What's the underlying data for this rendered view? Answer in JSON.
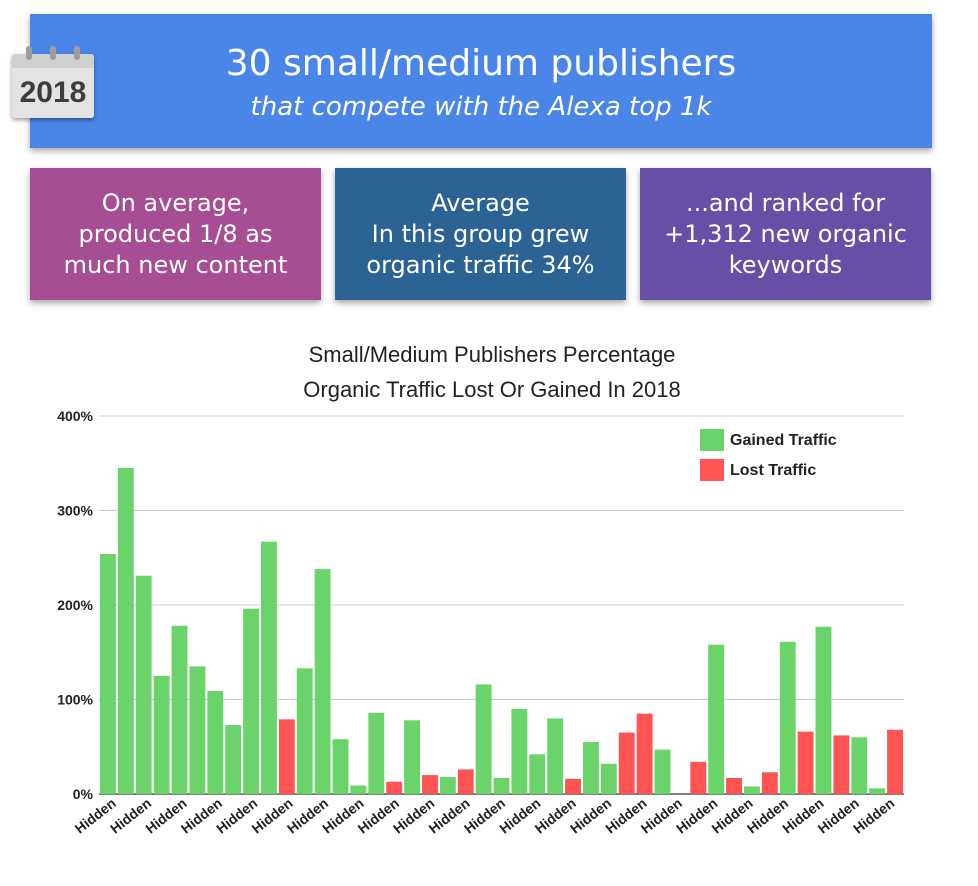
{
  "header": {
    "calendar_year": "2018",
    "title": "30 small/medium publishers",
    "subtitle": "that compete with the Alexa top 1k"
  },
  "cards": [
    {
      "lines": [
        "On average,",
        "produced 1/8 as",
        "much new content"
      ],
      "color": "#a64d94"
    },
    {
      "lines": [
        "Average",
        "In this group grew",
        "organic traffic 34%"
      ],
      "color": "#2b6395"
    },
    {
      "lines": [
        "...and ranked for",
        "+1,312 new organic",
        "keywords"
      ],
      "color": "#674ea7"
    }
  ],
  "colors": {
    "banner": "#4a86e8",
    "gained": "#6ad46a",
    "lost": "#fe5454"
  },
  "chart_data": {
    "type": "bar",
    "title": [
      "Small/Medium Publishers Percentage",
      "Organic Traffic Lost Or Gained In 2018"
    ],
    "ylabel": "",
    "xlabel": "",
    "ylim": [
      0,
      400
    ],
    "yticks": [
      0,
      100,
      200,
      300,
      400
    ],
    "ytick_labels": [
      "0%",
      "100%",
      "200%",
      "300%",
      "400%"
    ],
    "grid": true,
    "legend_position": "top-right",
    "series": [
      {
        "name": "Gained Traffic",
        "color": "#6ad46a"
      },
      {
        "name": "Lost Traffic",
        "color": "#fe5454"
      }
    ],
    "x_tick_labels": [
      "Hidden",
      "Hidden",
      "Hidden",
      "Hidden",
      "Hidden",
      "Hidden",
      "Hidden",
      "Hidden",
      "Hidden",
      "Hidden",
      "Hidden",
      "Hidden",
      "Hidden",
      "Hidden",
      "Hidden",
      "Hidden",
      "Hidden",
      "Hidden",
      "Hidden",
      "Hidden",
      "Hidden",
      "Hidden",
      "Hidden"
    ],
    "bars": [
      {
        "value": 254,
        "series": "Gained Traffic"
      },
      {
        "value": 345,
        "series": "Gained Traffic"
      },
      {
        "value": 231,
        "series": "Gained Traffic"
      },
      {
        "value": 125,
        "series": "Gained Traffic"
      },
      {
        "value": 178,
        "series": "Gained Traffic"
      },
      {
        "value": 135,
        "series": "Gained Traffic"
      },
      {
        "value": 109,
        "series": "Gained Traffic"
      },
      {
        "value": 73,
        "series": "Gained Traffic"
      },
      {
        "value": 196,
        "series": "Gained Traffic"
      },
      {
        "value": 267,
        "series": "Gained Traffic"
      },
      {
        "value": 79,
        "series": "Lost Traffic"
      },
      {
        "value": 133,
        "series": "Gained Traffic"
      },
      {
        "value": 238,
        "series": "Gained Traffic"
      },
      {
        "value": 58,
        "series": "Gained Traffic"
      },
      {
        "value": 9,
        "series": "Gained Traffic"
      },
      {
        "value": 86,
        "series": "Gained Traffic"
      },
      {
        "value": 13,
        "series": "Lost Traffic"
      },
      {
        "value": 78,
        "series": "Gained Traffic"
      },
      {
        "value": 20,
        "series": "Lost Traffic"
      },
      {
        "value": 18,
        "series": "Gained Traffic"
      },
      {
        "value": 26,
        "series": "Lost Traffic"
      },
      {
        "value": 116,
        "series": "Gained Traffic"
      },
      {
        "value": 17,
        "series": "Gained Traffic"
      },
      {
        "value": 90,
        "series": "Gained Traffic"
      },
      {
        "value": 42,
        "series": "Gained Traffic"
      },
      {
        "value": 80,
        "series": "Gained Traffic"
      },
      {
        "value": 16,
        "series": "Lost Traffic"
      },
      {
        "value": 55,
        "series": "Gained Traffic"
      },
      {
        "value": 32,
        "series": "Gained Traffic"
      },
      {
        "value": 65,
        "series": "Lost Traffic"
      },
      {
        "value": 85,
        "series": "Lost Traffic"
      },
      {
        "value": 47,
        "series": "Gained Traffic"
      },
      {
        "value": 0,
        "series": "Gained Traffic"
      },
      {
        "value": 34,
        "series": "Lost Traffic"
      },
      {
        "value": 158,
        "series": "Gained Traffic"
      },
      {
        "value": 17,
        "series": "Lost Traffic"
      },
      {
        "value": 8,
        "series": "Gained Traffic"
      },
      {
        "value": 23,
        "series": "Lost Traffic"
      },
      {
        "value": 161,
        "series": "Gained Traffic"
      },
      {
        "value": 66,
        "series": "Lost Traffic"
      },
      {
        "value": 177,
        "series": "Gained Traffic"
      },
      {
        "value": 62,
        "series": "Lost Traffic"
      },
      {
        "value": 60,
        "series": "Gained Traffic"
      },
      {
        "value": 6,
        "series": "Gained Traffic"
      },
      {
        "value": 68,
        "series": "Lost Traffic"
      }
    ]
  }
}
